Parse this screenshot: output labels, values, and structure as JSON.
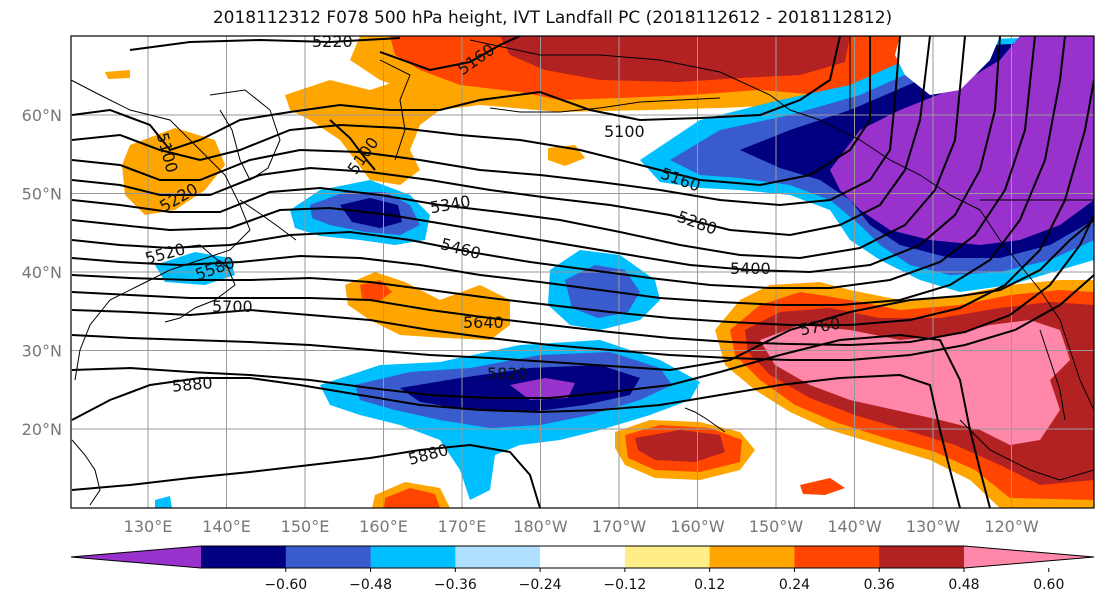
{
  "title": "2018112312 F078 500 hPa height, IVT Landfall PC (2018112612 - 2018112812)",
  "map": {
    "lon_labels": [
      "130°E",
      "140°E",
      "150°E",
      "160°E",
      "170°E",
      "180°W",
      "170°W",
      "160°W",
      "150°W",
      "140°W",
      "130°W",
      "120°W"
    ],
    "lat_labels": [
      "20°N",
      "30°N",
      "40°N",
      "50°N",
      "60°N"
    ],
    "contour_labels": [
      {
        "text": "5220"
      },
      {
        "text": "5160"
      },
      {
        "text": "5100"
      },
      {
        "text": "5100"
      },
      {
        "text": "5100"
      },
      {
        "text": "5160"
      },
      {
        "text": "5220"
      },
      {
        "text": "5340"
      },
      {
        "text": "5280"
      },
      {
        "text": "5460"
      },
      {
        "text": "5400"
      },
      {
        "text": "5520"
      },
      {
        "text": "5580"
      },
      {
        "text": "5700"
      },
      {
        "text": "5640"
      },
      {
        "text": "5760"
      },
      {
        "text": "5820"
      },
      {
        "text": "5880"
      },
      {
        "text": "5880"
      }
    ]
  },
  "colorbar": {
    "colors": [
      "#9932CC",
      "#000080",
      "#3A5BCE",
      "#00BFFF",
      "#B0E0FF",
      "#FFFFFF",
      "#FFEE88",
      "#FFA500",
      "#FF4500",
      "#B22222",
      "#FF88AA"
    ],
    "ticks": [
      "−0.60",
      "−0.48",
      "−0.36",
      "−0.24",
      "−0.12",
      "0.12",
      "0.24",
      "0.36",
      "0.48",
      "0.60"
    ]
  }
}
